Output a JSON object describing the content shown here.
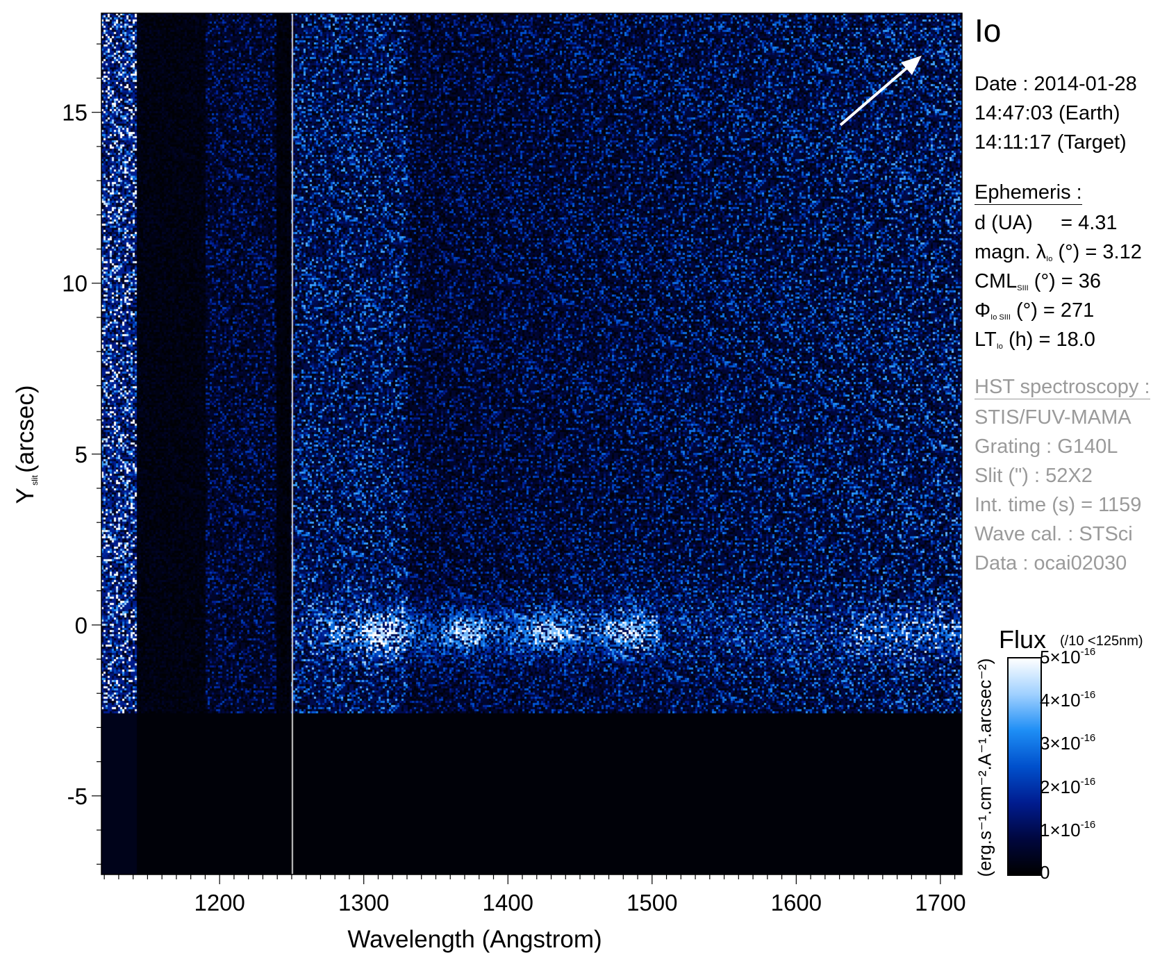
{
  "chart_data": {
    "type": "heatmap",
    "title": "Io",
    "xlabel": "Wavelength (Angstrom)",
    "ylabel": "Y",
    "ylabel_sub": "slit",
    "ylabel_unit": "(arcsec)",
    "xlim": [
      1118,
      1715
    ],
    "ylim": [
      -7.3,
      17.9
    ],
    "xticks": [
      1200,
      1300,
      1400,
      1500,
      1600,
      1700
    ],
    "yticks": [
      -5,
      0,
      5,
      10,
      15
    ],
    "colormap": [
      "#000000",
      "#00073f",
      "#001c90",
      "#0050cc",
      "#1e8ef5",
      "#9fd0ff",
      "#ffffff"
    ],
    "colorbar": {
      "title": "Flux",
      "note": "(/10 <125nm)",
      "unit": "(erg.s⁻¹.cm⁻².A⁻¹.arcsec⁻²)",
      "range": [
        0,
        5e-16
      ],
      "ticks": [
        "0",
        "1×10",
        "2×10",
        "3×10",
        "4×10",
        "5×10"
      ],
      "exponent": "-16"
    },
    "features": {
      "slit_bottom_edge_arcsec": -2.6,
      "emission_band_arcsec": -0.2,
      "marker_line_angstrom": 1250
    }
  },
  "info": {
    "target": "Io",
    "date": "Date : 2014-01-28",
    "earth_time": "14:47:03 (Earth)",
    "target_time": "14:11:17 (Target)",
    "ephemeris_title": "Ephemeris :",
    "d": "d (UA)     = 4.31",
    "magn_a": "magn. λ",
    "magn_sub": "Io",
    "magn_b": " (°)  = 3.12",
    "cml_a": "CML",
    "cml_sub": "SIII",
    "cml_b": " (°) = 36",
    "phi_a": "Φ",
    "phi_sub": "Io SIII",
    "phi_b": " (°) = 271",
    "lt_a": "LT",
    "lt_sub": "Io",
    "lt_b": " (h) = 18.0",
    "hst_title": "HST spectroscopy :",
    "instrument": "STIS/FUV-MAMA",
    "grating": "Grating : G140L",
    "slit": "Slit (\") : 52X2",
    "int_time": "Int. time (s) = 1159",
    "wave_cal": "Wave cal. : STSci",
    "data_id": "Data : ocai02030"
  }
}
